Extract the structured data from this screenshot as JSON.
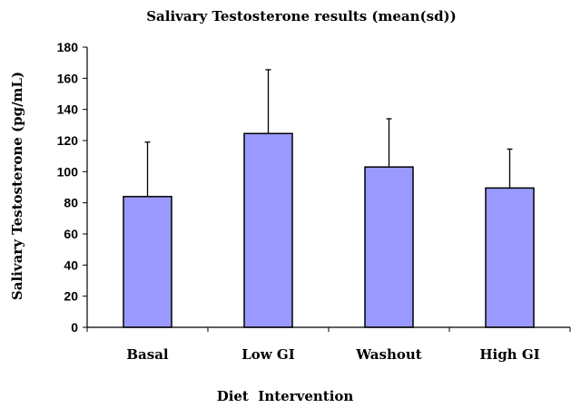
{
  "chart_data": {
    "type": "bar",
    "title": "Salivary Testosterone results (mean(sd))",
    "xlabel": "Diet  Intervention",
    "ylabel": "Salivary Testosterone (pg/mL)",
    "categories": [
      "Basal",
      "Low GI",
      "Washout",
      "High GI"
    ],
    "values": [
      84,
      124.5,
      103,
      89.5
    ],
    "error_sd": [
      35,
      41,
      31,
      25
    ],
    "ylim": [
      0,
      180
    ],
    "yticks": [
      0,
      20,
      40,
      60,
      80,
      100,
      120,
      140,
      160,
      180
    ],
    "bar_color": "#9999ff",
    "grid": false,
    "legend": "none"
  }
}
